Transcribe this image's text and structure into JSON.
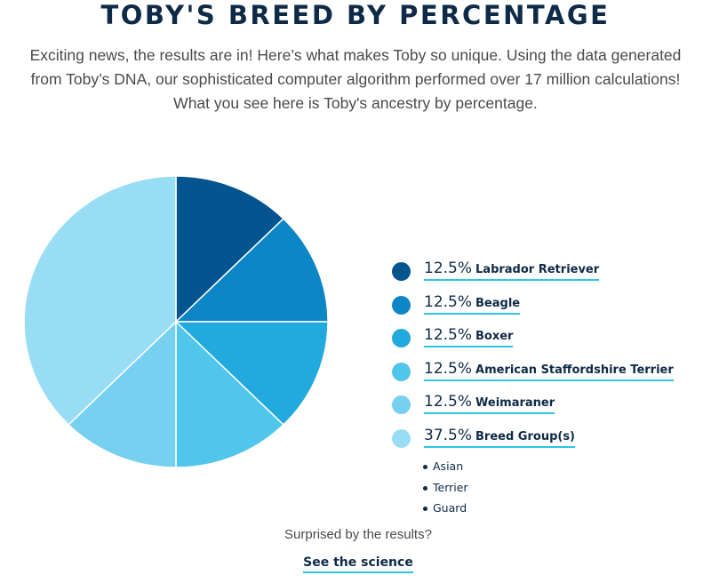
{
  "page": {
    "title": "TOBY'S BREED BY PERCENTAGE",
    "intro": "Exciting news, the results are in! Here’s what makes Toby so unique. Using the data generated from Toby’s DNA, our sophisticated computer algorithm performed over 17 million calculations! What you see here is Toby's ancestry by percentage.",
    "surprised_text": "Surprised by the results?",
    "science_link": "See the science"
  },
  "chart_data": {
    "type": "pie",
    "title": "",
    "slices": [
      {
        "label": "Labrador Retriever",
        "percent_label": "12.5%",
        "value": 12.5,
        "color": "#03548f"
      },
      {
        "label": "Beagle",
        "percent_label": "12.5%",
        "value": 12.5,
        "color": "#0d86c6"
      },
      {
        "label": "Boxer",
        "percent_label": "12.5%",
        "value": 12.5,
        "color": "#22a9dd"
      },
      {
        "label": "American Staffordshire Terrier",
        "percent_label": "12.5%",
        "value": 12.5,
        "color": "#4fc6ea"
      },
      {
        "label": "Weimaraner",
        "percent_label": "12.5%",
        "value": 12.5,
        "color": "#76d1f0"
      },
      {
        "label": "Breed Group(s)",
        "percent_label": "37.5%",
        "value": 37.5,
        "color": "#99ddf5"
      }
    ],
    "breed_groups": [
      "Asian",
      "Terrier",
      "Guard"
    ],
    "legend_position": "right"
  }
}
